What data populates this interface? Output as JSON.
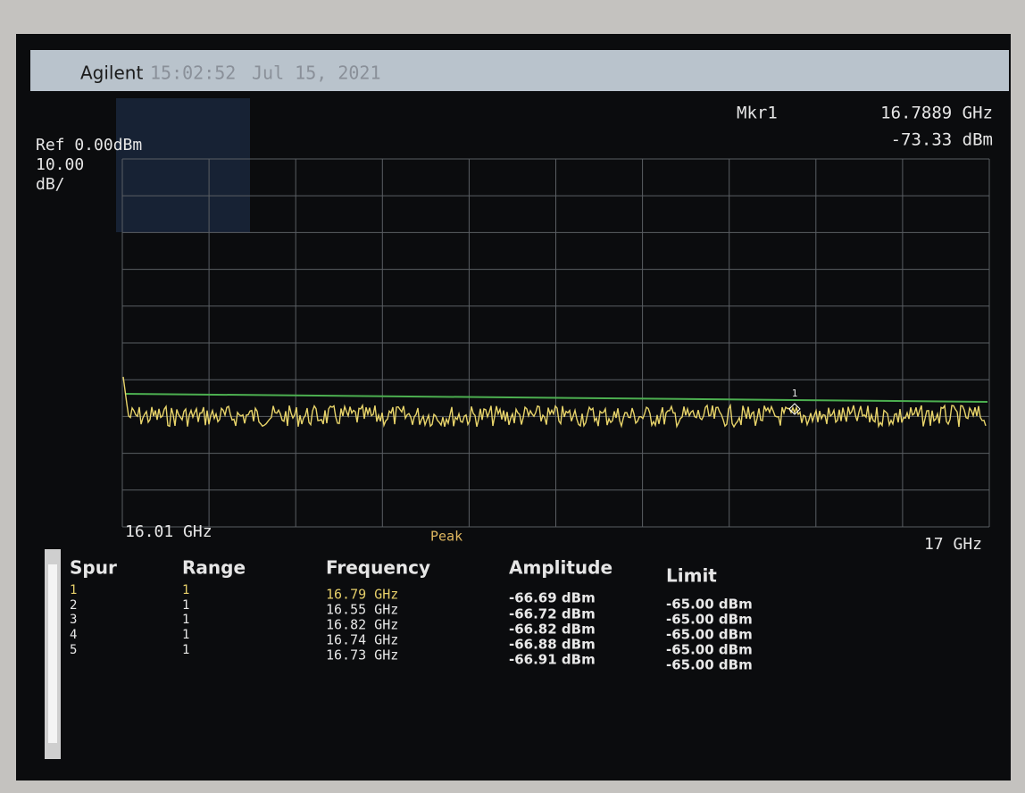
{
  "header": {
    "brand": "Agilent",
    "time": "15:02:52",
    "date": "Jul 15, 2021"
  },
  "marker": {
    "label": "Mkr1",
    "frequency": "16.7889 GHz",
    "amplitude": "-73.33 dBm",
    "tag": "1"
  },
  "display": {
    "reference": "Ref 0.00dBm",
    "scale": "10.00",
    "scale_unit": "dB/",
    "start": "16.01 GHz",
    "stop": "17 GHz",
    "detector": "Peak"
  },
  "table": {
    "headers": [
      "Spur",
      "Range",
      "Frequency",
      "Amplitude",
      "Limit"
    ],
    "rows": [
      [
        "1",
        "1",
        "16.79 GHz",
        "-66.69 dBm",
        "-65.00 dBm"
      ],
      [
        "2",
        "1",
        "16.55 GHz",
        "-66.72 dBm",
        "-65.00 dBm"
      ],
      [
        "3",
        "1",
        "16.82 GHz",
        "-66.82 dBm",
        "-65.00 dBm"
      ],
      [
        "4",
        "1",
        "16.74 GHz",
        "-66.88 dBm",
        "-65.00 dBm"
      ],
      [
        "5",
        "1",
        "16.73 GHz",
        "-66.91 dBm",
        "-65.00 dBm"
      ]
    ]
  }
}
